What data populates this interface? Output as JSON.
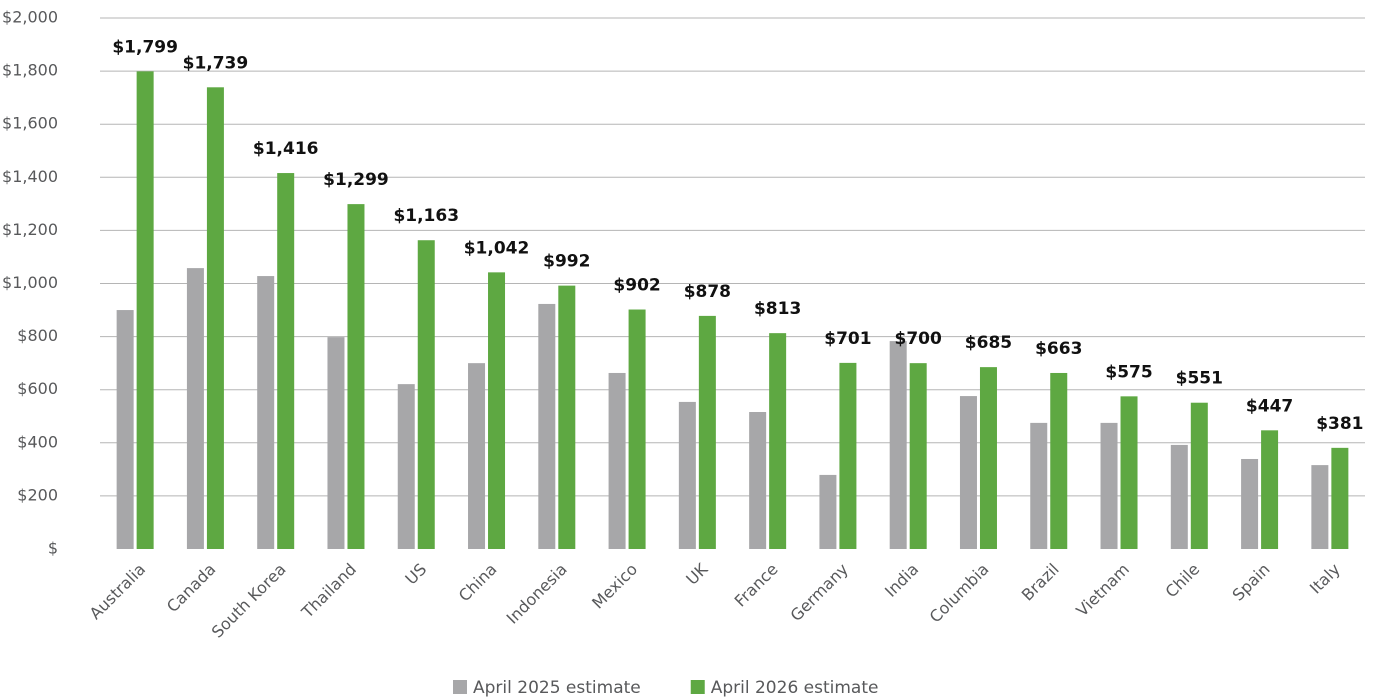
{
  "chart_data": {
    "type": "bar",
    "categories": [
      "Australia",
      "Canada",
      "South Korea",
      "Thailand",
      "US",
      "China",
      "Indonesia",
      "Mexico",
      "UK",
      "France",
      "Germany",
      "India",
      "Columbia",
      "Brazil",
      "Vietnam",
      "Chile",
      "Spain",
      "Italy"
    ],
    "series": [
      {
        "name": "April 2025 estimate",
        "color": "#a7a7a9",
        "values": [
          900,
          1058,
          1028,
          798,
          621,
          700,
          923,
          663,
          554,
          516,
          279,
          783,
          576,
          475,
          475,
          392,
          339,
          316
        ]
      },
      {
        "name": "April 2026 estimate",
        "color": "#5ea842",
        "values": [
          1799,
          1739,
          1416,
          1299,
          1163,
          1042,
          992,
          902,
          878,
          813,
          701,
          700,
          685,
          663,
          575,
          551,
          447,
          381
        ],
        "value_labels": [
          "$1,799",
          "$1,739",
          "$1,416",
          "$1,299",
          "$1,163",
          "$1,042",
          "$992",
          "$902",
          "$878",
          "$813",
          "$701",
          "$700",
          "$685",
          "$663",
          "$575",
          "$551",
          "$447",
          "$381"
        ]
      }
    ],
    "ylim": [
      0,
      2000
    ],
    "yticks": [
      {
        "value": 0,
        "label": "$"
      },
      {
        "value": 200,
        "label": "$200"
      },
      {
        "value": 400,
        "label": "$400"
      },
      {
        "value": 600,
        "label": "$600"
      },
      {
        "value": 800,
        "label": "$800"
      },
      {
        "value": 1000,
        "label": "$1,000"
      },
      {
        "value": 1200,
        "label": "$1,200"
      },
      {
        "value": 1400,
        "label": "$1,400"
      },
      {
        "value": 1600,
        "label": "$1,600"
      },
      {
        "value": 1800,
        "label": "$1,800"
      },
      {
        "value": 2000,
        "label": "$2,000"
      }
    ],
    "grid": true
  }
}
